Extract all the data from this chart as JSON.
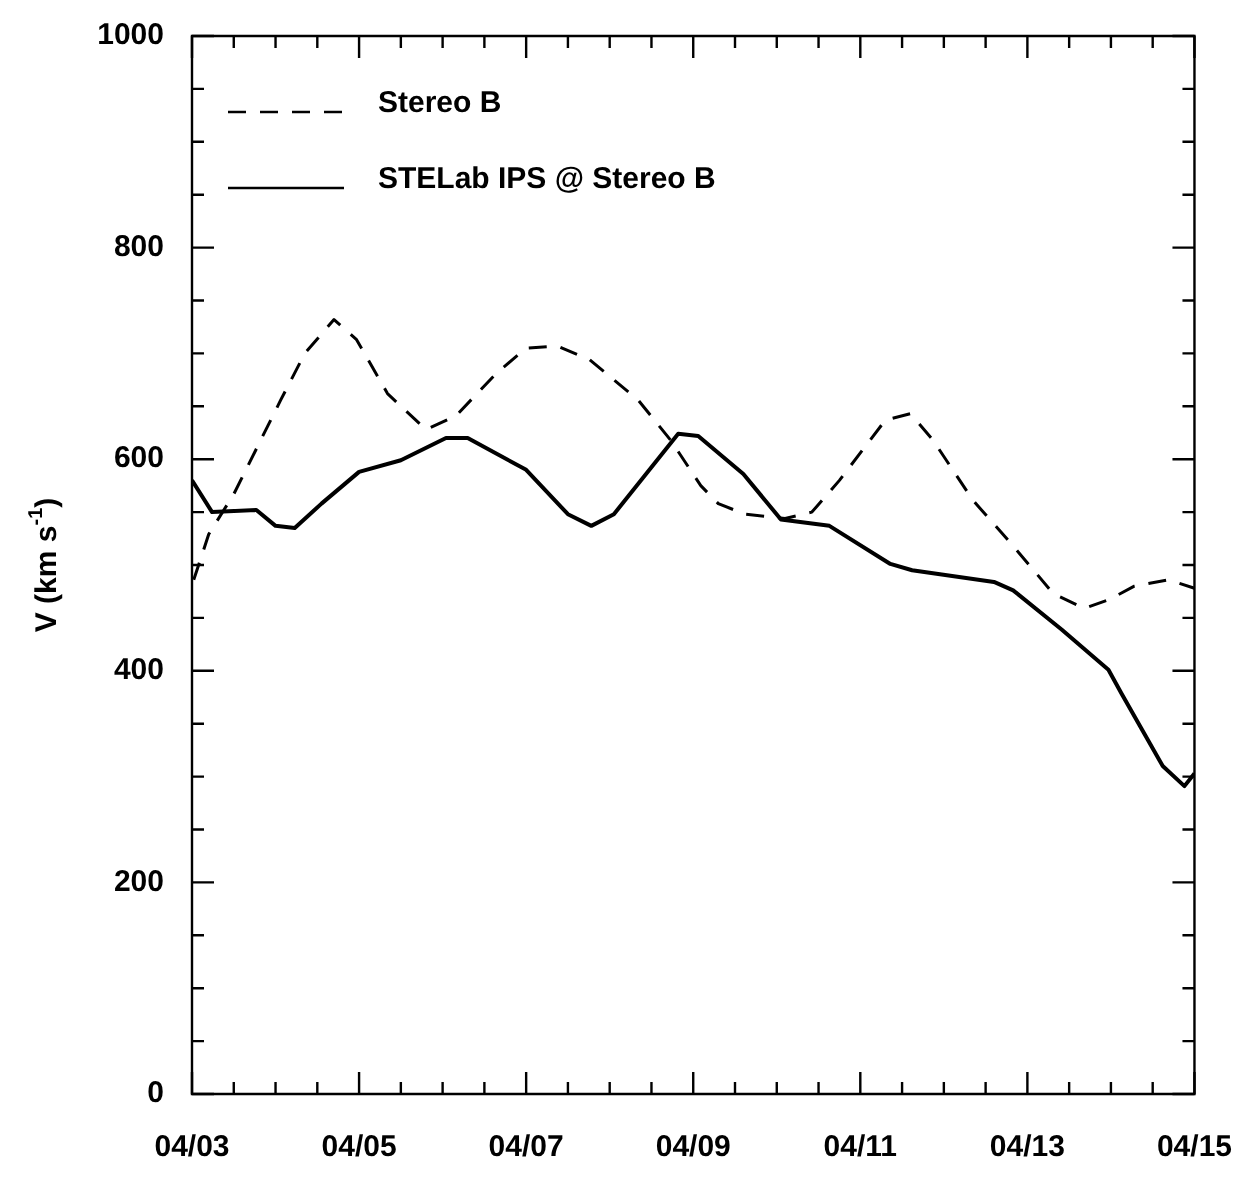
{
  "chart_data": {
    "type": "line",
    "ylabel": "V (km s$^{-1}$)",
    "xlim": [
      "--04-03",
      "--04-15"
    ],
    "xticks": [
      {
        "value": "--04-03",
        "label": "04/03"
      },
      {
        "value": "--04-03T12:00",
        "label": null
      },
      {
        "value": "--04-04",
        "label": null
      },
      {
        "value": "--04-04T12:00",
        "label": null
      },
      {
        "value": "--04-05",
        "label": "04/05"
      },
      {
        "value": "--04-05T12:00",
        "label": null
      },
      {
        "value": "--04-06",
        "label": null
      },
      {
        "value": "--04-06T12:00",
        "label": null
      },
      {
        "value": "--04-07",
        "label": "04/07"
      },
      {
        "value": "--04-07T12:00",
        "label": null
      },
      {
        "value": "--04-08",
        "label": null
      },
      {
        "value": "--04-08T12:00",
        "label": null
      },
      {
        "value": "--04-09",
        "label": "04/09"
      },
      {
        "value": "--04-09T12:00",
        "label": null
      },
      {
        "value": "--04-10",
        "label": null
      },
      {
        "value": "--04-10T12:00",
        "label": null
      },
      {
        "value": "--04-11",
        "label": "04/11"
      },
      {
        "value": "--04-11T12:00",
        "label": null
      },
      {
        "value": "--04-12",
        "label": null
      },
      {
        "value": "--04-12T12:00",
        "label": null
      },
      {
        "value": "--04-13",
        "label": "04/13"
      },
      {
        "value": "--04-13T12:00",
        "label": null
      },
      {
        "value": "--04-14",
        "label": null
      },
      {
        "value": "--04-14T12:00",
        "label": null
      },
      {
        "value": "--04-15",
        "label": "04/15"
      }
    ],
    "ylim": [
      0,
      1000
    ],
    "yticks": [
      0,
      {
        "value": 50,
        "label": null
      },
      {
        "value": 100,
        "label": null
      },
      {
        "value": 150,
        "label": null
      },
      200,
      {
        "value": 250,
        "label": null
      },
      {
        "value": 300,
        "label": null
      },
      {
        "value": 350,
        "label": null
      },
      400,
      {
        "value": 450,
        "label": null
      },
      {
        "value": 500,
        "label": null
      },
      {
        "value": 550,
        "label": null
      },
      600,
      {
        "value": 650,
        "label": null
      },
      {
        "value": 700,
        "label": null
      },
      {
        "value": 750,
        "label": null
      },
      800,
      {
        "value": 850,
        "label": null
      },
      {
        "value": 900,
        "label": null
      },
      {
        "value": 950,
        "label": null
      },
      1000
    ],
    "grid": false,
    "legend": "top left",
    "marker": "none",
    "series": [
      {
        "name": "Stereo B",
        "color": "#000000",
        "line_style": "dashed",
        "x": [
          "--04-03T00:30",
          "--04-03T04:48",
          "--04-03T12:00",
          "--04-04T01:30",
          "--04-04T08:24",
          "--04-04T16:48",
          "--04-04T23:17",
          "--04-05T08:10",
          "--04-05T19:12",
          "--04-06T03:50",
          "--04-06T15:22",
          "--04-07T00:00",
          "--04-07T08:53",
          "--04-07T18:14",
          "--04-08T08:10",
          "--04-08T17:31",
          "--04-09T02:10",
          "--04-09T07:12",
          "--04-09T14:53",
          "--04-10T02:24",
          "--04-10T10:05",
          "--04-10T18:00",
          "--04-11T07:12",
          "--04-11T14:24",
          "--04-11T20:53",
          "--04-12T08:24",
          "--04-12T19:55",
          "--04-13T07:26",
          "--04-13T16:19",
          "--04-13T23:17",
          "--04-14T06:43",
          "--04-14T16:34",
          "--04-15T00:00"
        ],
        "values": [
          486,
          529,
          567,
          656,
          700,
          732,
          713,
          662,
          628,
          641,
          681,
          705,
          707,
          694,
          656,
          618,
          575,
          558,
          548,
          544,
          550,
          580,
          637,
          643,
          618,
          561,
          518,
          473,
          459,
          467,
          480,
          486,
          478
        ]
      },
      {
        "name": "STELab IPS @ Stereo B",
        "color": "#000000",
        "line_style": "solid",
        "x": [
          "--04-03T00:00",
          "--04-03T05:46",
          "--04-03T18:29",
          "--04-04T00:00",
          "--04-04T05:31",
          "--04-04T13:12",
          "--04-05T00:00",
          "--04-05T12:00",
          "--04-06T00:58",
          "--04-06T07:12",
          "--04-07T00:00",
          "--04-07T12:00",
          "--04-07T18:43",
          "--04-08T01:12",
          "--04-08T19:41",
          "--04-09T01:26",
          "--04-09T14:24",
          "--04-10T01:12",
          "--04-10T15:07",
          "--04-11T08:38",
          "--04-11T14:53",
          "--04-12T14:24",
          "--04-12T19:55",
          "--04-13T09:50",
          "--04-13T23:17",
          "--04-14T03:07",
          "--04-14T14:53",
          "--04-14T21:07",
          "--04-15T00:00"
        ],
        "values": [
          580,
          550,
          552,
          537,
          535,
          558,
          588,
          599,
          620,
          620,
          590,
          548,
          537,
          548,
          624,
          622,
          586,
          543,
          537,
          501,
          495,
          484,
          476,
          439,
          401,
          378,
          310,
          291,
          303
        ]
      }
    ]
  }
}
